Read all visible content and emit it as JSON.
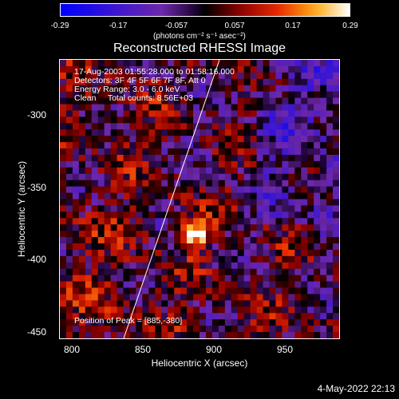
{
  "colorbar": {
    "ticks": [
      "-0.29",
      "-0.17",
      "-0.057",
      "0.057",
      "0.17",
      "0.29"
    ],
    "unit_text": "(photons cm⁻² s⁻¹ asec⁻²)"
  },
  "title": "Reconstructed RHESSI Image",
  "info": {
    "line1": "17-Aug-2003 01:55:28.000 to 01:58:16.000",
    "line2": "Detectors: 3F 4F 5F 6F 7F 8F, Att 0",
    "line3": "Energy Range: 3.0 - 6.0 keV",
    "line4": "Clean     Total counts: 8.56E+03",
    "peak": "Position of Peak = [885,-380]"
  },
  "axes": {
    "xlabel": "Heliocentric X (arcsec)",
    "ylabel": "Heliocentric Y (arcsec)",
    "xticks": [
      "800",
      "850",
      "900",
      "950"
    ],
    "yticks": [
      "-300",
      "-350",
      "-400",
      "-450"
    ]
  },
  "chart_data": {
    "type": "heatmap",
    "title": "Reconstructed RHESSI Image",
    "xlabel": "Heliocentric X (arcsec)",
    "ylabel": "Heliocentric Y (arcsec)",
    "xlim": [
      792,
      985
    ],
    "ylim": [
      -453,
      -259
    ],
    "color_range": [
      -0.29,
      0.29
    ],
    "peak": [
      885,
      -380
    ]
  },
  "timestamp": "4-May-2022 22:13"
}
